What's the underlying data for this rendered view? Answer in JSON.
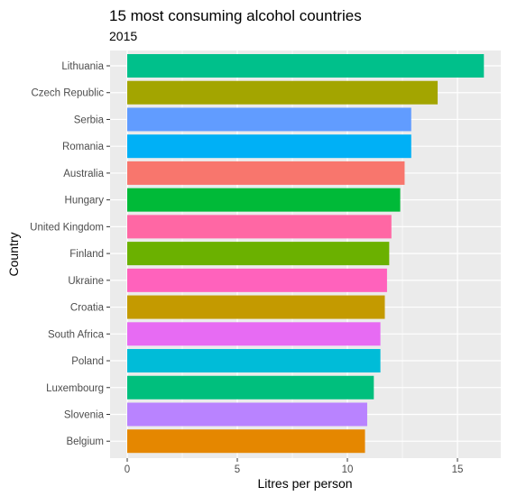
{
  "chart_data": {
    "type": "bar",
    "orientation": "horizontal",
    "title": "15 most consuming alcohol countries",
    "subtitle": "2015",
    "xlabel": "Litres per person",
    "ylabel": "Country",
    "xlim": [
      0,
      17
    ],
    "x_ticks": [
      0,
      5,
      10,
      15
    ],
    "grid": true,
    "panel_background": "#EBEBEB",
    "categories": [
      "Lithuania",
      "Czech Republic",
      "Serbia",
      "Romania",
      "Australia",
      "Hungary",
      "United Kingdom",
      "Finland",
      "Ukraine",
      "Croatia",
      "South Africa",
      "Poland",
      "Luxembourg",
      "Slovenia",
      "Belgium"
    ],
    "values": [
      16.2,
      14.1,
      12.9,
      12.9,
      12.6,
      12.4,
      12.0,
      11.9,
      11.8,
      11.7,
      11.5,
      11.5,
      11.2,
      10.9,
      10.8
    ],
    "colors": [
      "#00C08B",
      "#A3A500",
      "#619CFF",
      "#00B0F6",
      "#F8766D",
      "#00BA38",
      "#FF67A4",
      "#6BB100",
      "#FF62BC",
      "#C49A00",
      "#E76BF3",
      "#00BCD8",
      "#00BF7D",
      "#B983FF",
      "#E58700"
    ]
  }
}
